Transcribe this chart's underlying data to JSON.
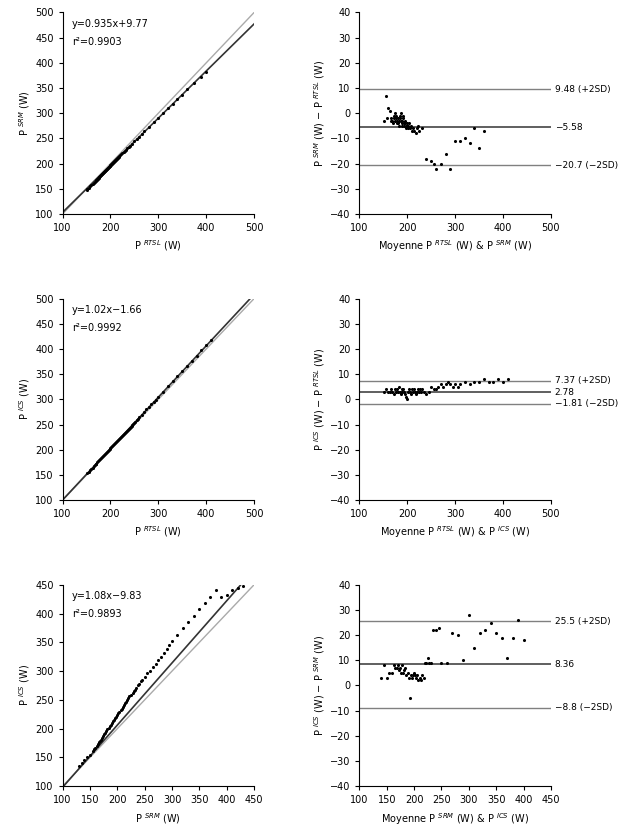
{
  "panel1_scatter": {
    "equation": "y=0.935x+9.77",
    "r2": "r²=0.9903",
    "xlim": [
      100,
      500
    ],
    "ylim": [
      100,
      500
    ],
    "xlabel": "P $^{RTSL}$ (W)",
    "ylabel": "P $^{SRM}$ (W)",
    "slope": 0.935,
    "intercept": 9.77,
    "xticks": [
      100,
      200,
      300,
      400,
      500
    ],
    "yticks": [
      100,
      150,
      200,
      250,
      300,
      350,
      400,
      450,
      500
    ],
    "points_x": [
      150,
      152,
      155,
      158,
      160,
      163,
      165,
      167,
      169,
      170,
      171,
      172,
      173,
      174,
      175,
      176,
      177,
      178,
      179,
      180,
      181,
      182,
      183,
      184,
      185,
      186,
      187,
      188,
      189,
      190,
      191,
      192,
      193,
      194,
      195,
      196,
      197,
      198,
      199,
      200,
      201,
      202,
      203,
      204,
      205,
      206,
      207,
      208,
      209,
      210,
      211,
      212,
      213,
      214,
      215,
      216,
      217,
      218,
      220,
      222,
      225,
      228,
      230,
      233,
      235,
      238,
      240,
      245,
      250,
      255,
      260,
      265,
      270,
      280,
      290,
      300,
      310,
      320,
      330,
      340,
      350,
      360,
      375,
      390,
      400
    ],
    "points_y": [
      148,
      150,
      152,
      155,
      157,
      160,
      162,
      164,
      166,
      167,
      168,
      169,
      170,
      171,
      172,
      173,
      174,
      175,
      176,
      177,
      178,
      179,
      180,
      181,
      182,
      183,
      184,
      185,
      186,
      187,
      188,
      189,
      190,
      191,
      192,
      193,
      194,
      195,
      196,
      197,
      198,
      199,
      200,
      201,
      202,
      203,
      204,
      205,
      206,
      207,
      208,
      209,
      210,
      211,
      212,
      213,
      214,
      215,
      217,
      219,
      221,
      224,
      226,
      228,
      230,
      233,
      235,
      239,
      244,
      248,
      252,
      258,
      264,
      273,
      282,
      291,
      300,
      310,
      319,
      328,
      337,
      348,
      360,
      372,
      382
    ]
  },
  "panel2_bland": {
    "mean_val": -5.58,
    "upper_sd": 9.48,
    "lower_sd": -20.7,
    "xlim": [
      100,
      500
    ],
    "ylim": [
      -40,
      40
    ],
    "xlabel": "Moyenne P $^{RTSL}$ (W) & P $^{SRM}$ (W)",
    "ylabel": "P $^{SRM}$ (W) − P $^{RTSL}$ (W)",
    "upper_label": "9.48 (+2SD)",
    "mean_label": "−5.58",
    "lower_label": "−20.7 (−2SD)",
    "yticks": [
      -40,
      -30,
      -20,
      -10,
      0,
      10,
      20,
      30,
      40
    ],
    "xticks": [
      100,
      200,
      300,
      400,
      500
    ],
    "points_x": [
      152,
      155,
      158,
      160,
      163,
      165,
      167,
      169,
      170,
      172,
      173,
      174,
      175,
      176,
      177,
      178,
      179,
      180,
      181,
      182,
      183,
      184,
      185,
      186,
      187,
      188,
      189,
      190,
      191,
      192,
      193,
      194,
      195,
      196,
      197,
      198,
      199,
      200,
      201,
      202,
      203,
      205,
      207,
      210,
      212,
      215,
      218,
      220,
      222,
      225,
      230,
      240,
      250,
      255,
      260,
      270,
      280,
      290,
      300,
      310,
      320,
      330,
      340,
      350,
      360
    ],
    "points_y": [
      -3,
      7,
      -2,
      2,
      1,
      -3,
      -2,
      -3,
      -4,
      -2,
      -1,
      0,
      -3,
      -2,
      -1,
      -4,
      -3,
      -2,
      -4,
      -5,
      -3,
      -2,
      -1,
      0,
      -3,
      -4,
      -5,
      -3,
      -2,
      -1,
      -5,
      -4,
      -3,
      -4,
      -5,
      -6,
      -4,
      -5,
      -6,
      -5,
      -4,
      -6,
      -5,
      -7,
      -6,
      -7,
      -8,
      -6,
      -5,
      -7,
      -6,
      -18,
      -19,
      -20,
      -22,
      -20,
      -16,
      -22,
      -11,
      -11,
      -10,
      -12,
      -6,
      -14,
      -7
    ]
  },
  "panel3_scatter": {
    "equation": "y=1.02x−1.66",
    "r2": "r²=0.9992",
    "xlim": [
      100,
      500
    ],
    "ylim": [
      100,
      500
    ],
    "xlabel": "P $^{RTSL}$ (W)",
    "ylabel": "P $^{ICS}$ (W)",
    "slope": 1.02,
    "intercept": -1.66,
    "xticks": [
      100,
      200,
      300,
      400,
      500
    ],
    "yticks": [
      100,
      150,
      200,
      250,
      300,
      350,
      400,
      450,
      500
    ],
    "points_x": [
      152,
      155,
      158,
      160,
      163,
      165,
      167,
      169,
      170,
      172,
      174,
      176,
      178,
      180,
      182,
      184,
      186,
      188,
      190,
      192,
      194,
      196,
      198,
      200,
      202,
      204,
      206,
      208,
      210,
      212,
      214,
      216,
      218,
      220,
      222,
      224,
      226,
      228,
      230,
      232,
      234,
      236,
      238,
      240,
      242,
      244,
      246,
      248,
      250,
      252,
      255,
      258,
      260,
      265,
      270,
      275,
      280,
      285,
      290,
      295,
      300,
      310,
      320,
      330,
      340,
      350,
      360,
      370,
      380,
      390,
      400,
      410
    ],
    "points_y": [
      153,
      156,
      159,
      162,
      164,
      167,
      169,
      171,
      172,
      175,
      177,
      179,
      181,
      183,
      185,
      188,
      190,
      192,
      194,
      196,
      198,
      200,
      202,
      204,
      206,
      208,
      210,
      212,
      214,
      216,
      218,
      220,
      222,
      224,
      226,
      228,
      230,
      232,
      234,
      236,
      238,
      240,
      242,
      244,
      246,
      248,
      250,
      252,
      253,
      256,
      259,
      262,
      265,
      269,
      274,
      280,
      285,
      290,
      295,
      299,
      305,
      315,
      326,
      336,
      346,
      356,
      366,
      376,
      387,
      397,
      408,
      418
    ]
  },
  "panel4_bland": {
    "mean_val": 2.78,
    "upper_sd": 7.37,
    "lower_sd": -1.81,
    "xlim": [
      100,
      500
    ],
    "ylim": [
      -40,
      40
    ],
    "xlabel": "Moyenne P $^{RTSL}$ (W) & P $^{ICS}$ (W)",
    "ylabel": "P $^{ICS}$ (W) − P $^{RTSL}$ (W)",
    "upper_label": "7.37 (+2SD)",
    "mean_label": "2.78",
    "lower_label": "−1.81 (−2SD)",
    "yticks": [
      -40,
      -30,
      -20,
      -10,
      0,
      10,
      20,
      30,
      40
    ],
    "xticks": [
      100,
      200,
      300,
      400,
      500
    ],
    "points_x": [
      152,
      156,
      160,
      163,
      166,
      169,
      172,
      174,
      176,
      178,
      180,
      182,
      184,
      186,
      188,
      190,
      192,
      194,
      196,
      198,
      200,
      202,
      204,
      206,
      208,
      210,
      212,
      214,
      216,
      218,
      220,
      222,
      224,
      226,
      228,
      230,
      235,
      240,
      245,
      250,
      255,
      260,
      265,
      270,
      275,
      280,
      285,
      290,
      295,
      300,
      305,
      310,
      320,
      330,
      340,
      350,
      360,
      370,
      380,
      390,
      400,
      410
    ],
    "points_y": [
      3,
      4,
      3,
      3,
      4,
      3,
      2,
      4,
      3,
      4,
      3,
      5,
      3,
      2,
      4,
      3,
      4,
      3,
      2,
      1,
      0,
      3,
      4,
      3,
      2,
      4,
      3,
      4,
      3,
      2,
      3,
      4,
      3,
      4,
      3,
      4,
      3,
      2,
      3,
      5,
      4,
      4,
      5,
      6,
      5,
      6,
      7,
      6,
      5,
      6,
      5,
      6,
      7,
      6,
      7,
      7,
      8,
      7,
      7,
      8,
      7,
      8
    ]
  },
  "panel5_scatter": {
    "equation": "y=1.08x−9.83",
    "r2": "r²=0.9893",
    "xlim": [
      100,
      450
    ],
    "ylim": [
      100,
      450
    ],
    "xlabel": "P $^{SRM}$ (W)",
    "ylabel": "P $^{ICS}$ (W)",
    "slope": 1.08,
    "intercept": -9.83,
    "xticks": [
      100,
      150,
      200,
      250,
      300,
      350,
      400,
      450
    ],
    "yticks": [
      100,
      150,
      200,
      250,
      300,
      350,
      400,
      450
    ],
    "points_x": [
      130,
      135,
      140,
      145,
      150,
      155,
      158,
      160,
      162,
      165,
      167,
      169,
      170,
      172,
      174,
      176,
      178,
      180,
      182,
      184,
      186,
      188,
      190,
      192,
      194,
      196,
      198,
      200,
      202,
      204,
      206,
      208,
      210,
      212,
      214,
      216,
      218,
      220,
      222,
      225,
      228,
      230,
      233,
      235,
      238,
      240,
      243,
      245,
      250,
      255,
      260,
      265,
      270,
      275,
      280,
      285,
      290,
      295,
      300,
      310,
      320,
      330,
      340,
      350,
      360,
      370,
      380,
      390,
      400,
      410,
      420,
      430
    ],
    "points_y": [
      135,
      140,
      145,
      150,
      155,
      161,
      164,
      167,
      170,
      173,
      176,
      179,
      181,
      184,
      187,
      190,
      193,
      196,
      199,
      201,
      204,
      207,
      210,
      213,
      215,
      218,
      221,
      224,
      227,
      229,
      232,
      235,
      238,
      241,
      244,
      247,
      250,
      253,
      256,
      259,
      262,
      265,
      268,
      271,
      275,
      278,
      282,
      285,
      290,
      296,
      301,
      307,
      313,
      319,
      325,
      332,
      338,
      345,
      352,
      363,
      374,
      385,
      395,
      407,
      418,
      428,
      440,
      428,
      432,
      440,
      444,
      448
    ]
  },
  "panel6_bland": {
    "mean_val": 8.36,
    "upper_sd": 25.5,
    "lower_sd": -8.8,
    "xlim": [
      100,
      450
    ],
    "ylim": [
      -40,
      40
    ],
    "xlabel": "Moyenne P $^{SRM}$ (W) & P $^{ICS}$ (W)",
    "ylabel": "P $^{ICS}$ (W) − P $^{SRM}$ (W)",
    "upper_label": "25.5 (+2SD)",
    "mean_label": "8.36",
    "lower_label": "−8.8 (−2SD)",
    "yticks": [
      -40,
      -30,
      -20,
      -10,
      0,
      10,
      20,
      30,
      40
    ],
    "xticks": [
      100,
      150,
      200,
      250,
      300,
      350,
      400,
      450
    ],
    "points_x": [
      140,
      145,
      150,
      155,
      160,
      163,
      165,
      168,
      170,
      172,
      174,
      176,
      178,
      180,
      182,
      184,
      186,
      188,
      190,
      192,
      194,
      196,
      198,
      200,
      202,
      204,
      206,
      208,
      210,
      212,
      215,
      218,
      220,
      222,
      225,
      228,
      230,
      235,
      240,
      245,
      250,
      260,
      270,
      280,
      290,
      300,
      310,
      320,
      330,
      340,
      350,
      360,
      370,
      380,
      390,
      400
    ],
    "points_y": [
      3,
      8,
      3,
      5,
      5,
      8,
      7,
      7,
      8,
      6,
      7,
      5,
      8,
      5,
      6,
      7,
      4,
      5,
      3,
      -5,
      4,
      3,
      4,
      5,
      4,
      3,
      4,
      2,
      3,
      2,
      4,
      3,
      9,
      9,
      11,
      9,
      9,
      22,
      22,
      23,
      9,
      9,
      21,
      20,
      10,
      28,
      15,
      21,
      22,
      25,
      21,
      19,
      11,
      19,
      26,
      18
    ]
  },
  "line_color": "#808080",
  "dot_color": "#000000",
  "identity_color": "#aaaaaa",
  "regression_color": "#333333"
}
